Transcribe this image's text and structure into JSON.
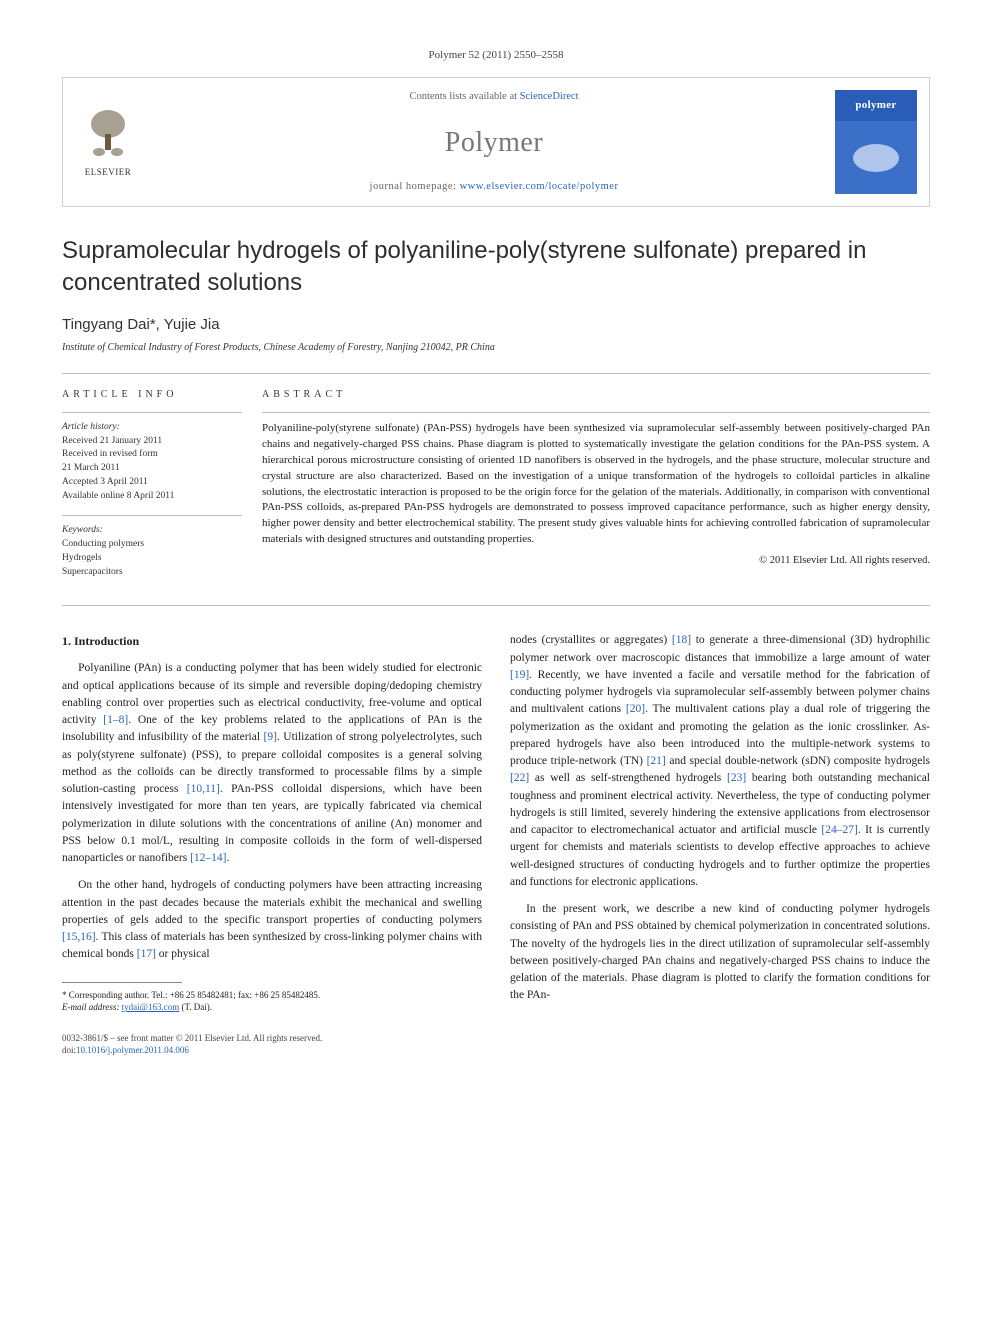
{
  "journal_ref": "Polymer 52 (2011) 2550–2558",
  "header": {
    "contents_prefix": "Contents lists available at ",
    "contents_link": "ScienceDirect",
    "journal_name": "Polymer",
    "homepage_prefix": "journal homepage: ",
    "homepage_url": "www.elsevier.com/locate/polymer",
    "publisher": "ELSEVIER",
    "cover_label": "polymer"
  },
  "title": "Supramolecular hydrogels of polyaniline-poly(styrene sulfonate) prepared in concentrated solutions",
  "authors": "Tingyang Dai*, Yujie Jia",
  "affiliation": "Institute of Chemical Industry of Forest Products, Chinese Academy of Forestry, Nanjing 210042, PR China",
  "article_info": {
    "header": "ARTICLE INFO",
    "history_label": "Article history:",
    "received": "Received 21 January 2011",
    "revised": "Received in revised form\n21 March 2011",
    "accepted": "Accepted 3 April 2011",
    "online": "Available online 8 April 2011",
    "keywords_label": "Keywords:",
    "keywords": [
      "Conducting polymers",
      "Hydrogels",
      "Supercapacitors"
    ]
  },
  "abstract": {
    "header": "ABSTRACT",
    "text": "Polyaniline-poly(styrene sulfonate) (PAn-PSS) hydrogels have been synthesized via supramolecular self-assembly between positively-charged PAn chains and negatively-charged PSS chains. Phase diagram is plotted to systematically investigate the gelation conditions for the PAn-PSS system. A hierarchical porous microstructure consisting of oriented 1D nanofibers is observed in the hydrogels, and the phase structure, molecular structure and crystal structure are also characterized. Based on the investigation of a unique transformation of the hydrogels to colloidal particles in alkaline solutions, the electrostatic interaction is proposed to be the origin force for the gelation of the materials. Additionally, in comparison with conventional PAn-PSS colloids, as-prepared PAn-PSS hydrogels are demonstrated to possess improved capacitance performance, such as higher energy density, higher power density and better electrochemical stability. The present study gives valuable hints for achieving controlled fabrication of supramolecular materials with designed structures and outstanding properties.",
    "copyright": "© 2011 Elsevier Ltd. All rights reserved."
  },
  "body": {
    "section1_heading": "1. Introduction",
    "left_p1": "Polyaniline (PAn) is a conducting polymer that has been widely studied for electronic and optical applications because of its simple and reversible doping/dedoping chemistry enabling control over properties such as electrical conductivity, free-volume and optical activity [1–8]. One of the key problems related to the applications of PAn is the insolubility and infusibility of the material [9]. Utilization of strong polyelectrolytes, such as poly(styrene sulfonate) (PSS), to prepare colloidal composites is a general solving method as the colloids can be directly transformed to processable films by a simple solution-casting process [10,11]. PAn-PSS colloidal dispersions, which have been intensively investigated for more than ten years, are typically fabricated via chemical polymerization in dilute solutions with the concentrations of aniline (An) monomer and PSS below 0.1 mol/L, resulting in composite colloids in the form of well-dispersed nanoparticles or nanofibers [12–14].",
    "left_p2": "On the other hand, hydrogels of conducting polymers have been attracting increasing attention in the past decades because the materials exhibit the mechanical and swelling properties of gels added to the specific transport properties of conducting polymers [15,16]. This class of materials has been synthesized by cross-linking polymer chains with chemical bonds [17] or physical",
    "right_p1": "nodes (crystallites or aggregates) [18] to generate a three-dimensional (3D) hydrophilic polymer network over macroscopic distances that immobilize a large amount of water [19]. Recently, we have invented a facile and versatile method for the fabrication of conducting polymer hydrogels via supramolecular self-assembly between polymer chains and multivalent cations [20]. The multivalent cations play a dual role of triggering the polymerization as the oxidant and promoting the gelation as the ionic crosslinker. As-prepared hydrogels have also been introduced into the multiple-network systems to produce triple-network (TN) [21] and special double-network (sDN) composite hydrogels [22] as well as self-strengthened hydrogels [23] bearing both outstanding mechanical toughness and prominent electrical activity. Nevertheless, the type of conducting polymer hydrogels is still limited, severely hindering the extensive applications from electrosensor and capacitor to electromechanical actuator and artificial muscle [24–27]. It is currently urgent for chemists and materials scientists to develop effective approaches to achieve well-designed structures of conducting hydrogels and to further optimize the properties and functions for electronic applications.",
    "right_p2": "In the present work, we describe a new kind of conducting polymer hydrogels consisting of PAn and PSS obtained by chemical polymerization in concentrated solutions. The novelty of the hydrogels lies in the direct utilization of supramolecular self-assembly between positively-charged PAn chains and negatively-charged PSS chains to induce the gelation of the materials. Phase diagram is plotted to clarify the formation conditions for the PAn-",
    "refs": {
      "r1_8": "[1–8]",
      "r9": "[9]",
      "r10_11": "[10,11]",
      "r12_14": "[12–14]",
      "r15_16": "[15,16]",
      "r17": "[17]",
      "r18": "[18]",
      "r19": "[19]",
      "r20": "[20]",
      "r21": "[21]",
      "r22": "[22]",
      "r23": "[23]",
      "r24_27": "[24–27]"
    }
  },
  "footnote": {
    "corr": "* Corresponding author. Tel.: +86 25 85482481; fax: +86 25 85482485.",
    "email_label": "E-mail address: ",
    "email": "tydai@163.com",
    "email_suffix": " (T. Dai)."
  },
  "footer": {
    "line1": "0032-3861/$ – see front matter © 2011 Elsevier Ltd. All rights reserved.",
    "doi_prefix": "doi:",
    "doi": "10.1016/j.polymer.2011.04.006"
  },
  "colors": {
    "link": "#2a63b8",
    "text": "#222222",
    "rule": "#bbbbbb",
    "cover_top": "#2a5db8"
  }
}
